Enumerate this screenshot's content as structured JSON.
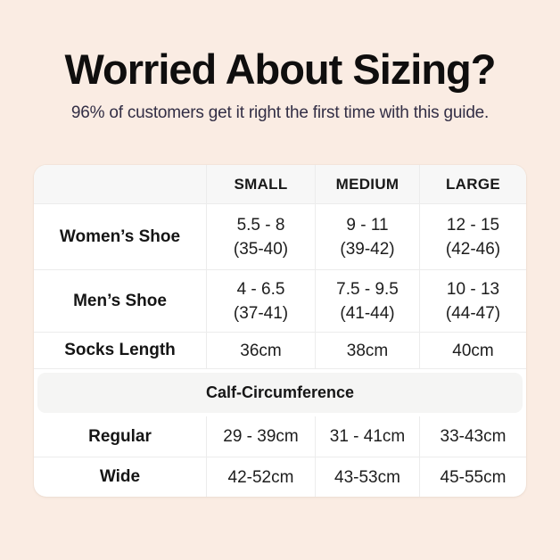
{
  "page": {
    "title": "Worried About Sizing?",
    "subtitle": "96% of customers get it right the first time with this guide."
  },
  "colors": {
    "page_background": "#faece3",
    "card_background": "#ffffff",
    "header_row_background": "#f7f7f7",
    "section_band_background": "#f5f5f4",
    "divider": "#ececec",
    "title_text": "#0f0e0e",
    "subtitle_text": "#322e45",
    "table_text": "#1b1b1b"
  },
  "table": {
    "headers": {
      "col1": "",
      "small": "SMALL",
      "medium": "MEDIUM",
      "large": "LARGE"
    },
    "womens": {
      "label": "Women’s Shoe",
      "small_us": "5.5 - 8",
      "small_eu": "(35-40)",
      "medium_us": "9 - 11",
      "medium_eu": "(39-42)",
      "large_us": "12 - 15",
      "large_eu": "(42-46)"
    },
    "mens": {
      "label": "Men’s Shoe",
      "small_us": "4 - 6.5",
      "small_eu": "(37-41)",
      "medium_us": "7.5 - 9.5",
      "medium_eu": "(41-44)",
      "large_us": "10 - 13",
      "large_eu": "(44-47)"
    },
    "socks": {
      "label": "Socks Length",
      "small": "36cm",
      "medium": "38cm",
      "large": "40cm"
    },
    "section": {
      "label": "Calf-Circumference"
    },
    "regular": {
      "label": "Regular",
      "small": "29 - 39cm",
      "medium": "31 - 41cm",
      "large": "33-43cm"
    },
    "wide": {
      "label": "Wide",
      "small": "42-52cm",
      "medium": "43-53cm",
      "large": "45-55cm"
    }
  }
}
